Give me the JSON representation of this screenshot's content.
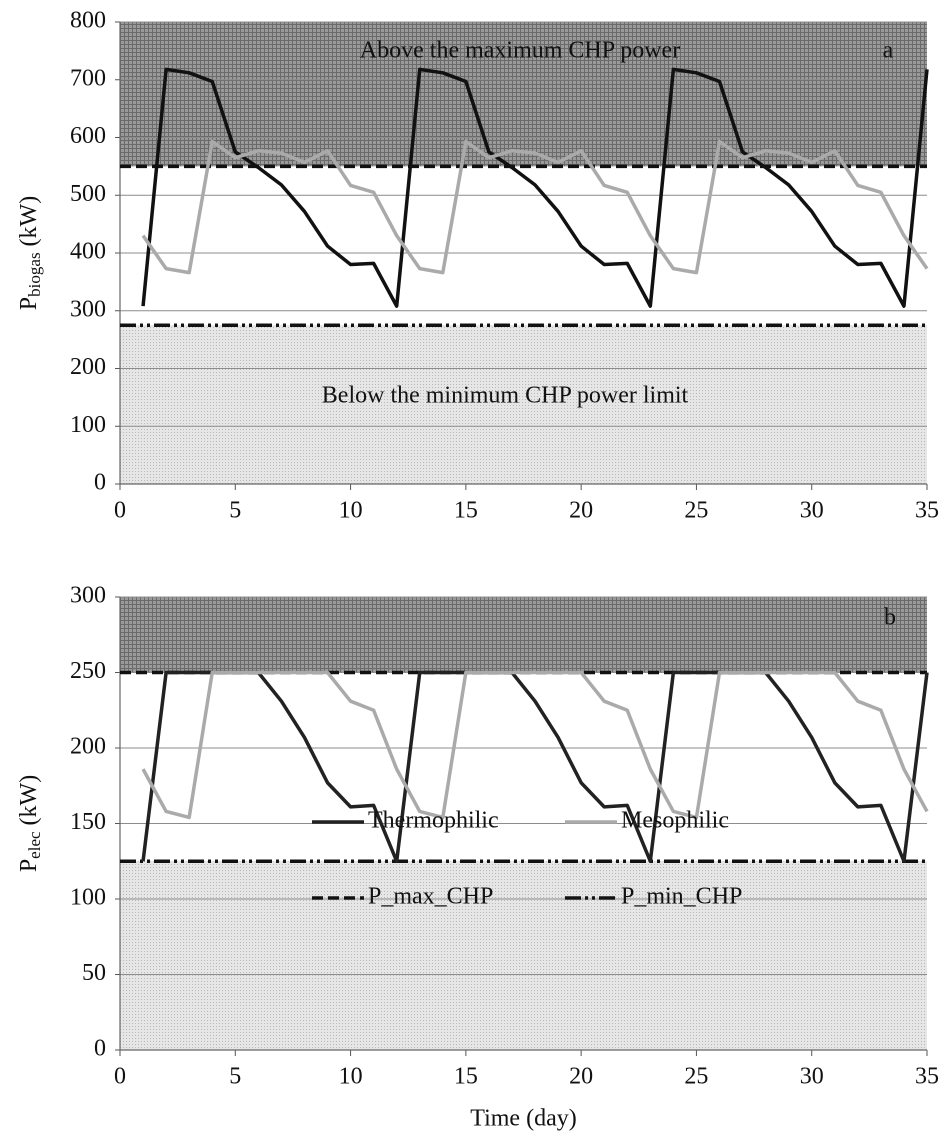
{
  "chart_data": [
    {
      "type": "line",
      "ylabel": {
        "main": "P",
        "sub": "biogas",
        "unit": "(kW)"
      },
      "annotations": [
        "Above the maximum CHP power",
        "a",
        "Below the minimum CHP power limit"
      ],
      "x": [
        1,
        2,
        3,
        4,
        5,
        6,
        7,
        8,
        9,
        10,
        11,
        12,
        13,
        14,
        15,
        16,
        17,
        18,
        19,
        20,
        21,
        22,
        23,
        24,
        25,
        26,
        27,
        28,
        29,
        30,
        31,
        32,
        33,
        34,
        35
      ],
      "xlim": [
        0,
        35
      ],
      "xticks": [
        0,
        5,
        10,
        15,
        20,
        25,
        30,
        35
      ],
      "ylim": [
        0,
        800
      ],
      "yticks": [
        0,
        100,
        200,
        300,
        400,
        500,
        600,
        700,
        800
      ],
      "grid": true,
      "bands": [
        {
          "from": 550,
          "to": 800,
          "shade": "dark"
        },
        {
          "from": 0,
          "to": 275,
          "shade": "light"
        }
      ],
      "ref_lines": [
        {
          "value": 550,
          "dash": "dashed",
          "color": "#111111"
        },
        {
          "value": 275,
          "dash": "dash-dot-dot",
          "color": "#111111"
        }
      ],
      "series": [
        {
          "color": "#111111",
          "values": [
            308,
            718,
            712,
            697,
            575,
            548,
            518,
            472,
            412,
            380,
            382,
            308,
            718,
            712,
            697,
            575,
            548,
            518,
            472,
            412,
            380,
            382,
            308,
            718,
            712,
            697,
            575,
            548,
            518,
            472,
            412,
            380,
            382,
            308,
            718
          ]
        },
        {
          "color": "#aaaaaa",
          "values": [
            430,
            373,
            366,
            593,
            565,
            577,
            573,
            557,
            577,
            517,
            505,
            430,
            373,
            366,
            593,
            565,
            577,
            573,
            557,
            577,
            517,
            505,
            430,
            373,
            366,
            593,
            565,
            577,
            573,
            557,
            577,
            517,
            505,
            430,
            373
          ]
        }
      ],
      "legend": false
    },
    {
      "type": "line",
      "ylabel": {
        "main": "P",
        "sub": "elec",
        "unit": "(kW)"
      },
      "xlabel": "Time (day)",
      "annotations": [
        "b"
      ],
      "x": [
        1,
        2,
        3,
        4,
        5,
        6,
        7,
        8,
        9,
        10,
        11,
        12,
        13,
        14,
        15,
        16,
        17,
        18,
        19,
        20,
        21,
        22,
        23,
        24,
        25,
        26,
        27,
        28,
        29,
        30,
        31,
        32,
        33,
        34,
        35
      ],
      "xlim": [
        0,
        35
      ],
      "xticks": [
        0,
        5,
        10,
        15,
        20,
        25,
        30,
        35
      ],
      "ylim": [
        0,
        300
      ],
      "yticks": [
        0,
        50,
        100,
        150,
        200,
        250,
        300
      ],
      "grid": true,
      "bands": [
        {
          "from": 250,
          "to": 300,
          "shade": "dark"
        },
        {
          "from": 0,
          "to": 125,
          "shade": "light"
        }
      ],
      "ref_lines": [
        {
          "name": "P_max_CHP",
          "value": 250,
          "dash": "dashed",
          "color": "#111111"
        },
        {
          "name": "P_min_CHP",
          "value": 125,
          "dash": "dash-dot-dot",
          "color": "#111111"
        }
      ],
      "series": [
        {
          "name": "Thermophilic",
          "color": "#222222",
          "values": [
            125,
            250,
            250,
            250,
            250,
            250,
            231,
            207,
            177,
            161,
            162,
            125,
            250,
            250,
            250,
            250,
            250,
            231,
            207,
            177,
            161,
            162,
            125,
            250,
            250,
            250,
            250,
            250,
            231,
            207,
            177,
            161,
            162,
            125,
            250
          ]
        },
        {
          "name": "Mesophilic",
          "color": "#aaaaaa",
          "values": [
            186,
            158,
            154,
            250,
            250,
            250,
            250,
            250,
            250,
            231,
            225,
            186,
            158,
            154,
            250,
            250,
            250,
            250,
            250,
            250,
            231,
            225,
            186,
            158,
            154,
            250,
            250,
            250,
            250,
            250,
            250,
            231,
            225,
            186,
            158
          ]
        }
      ],
      "legend": "lower center"
    }
  ]
}
